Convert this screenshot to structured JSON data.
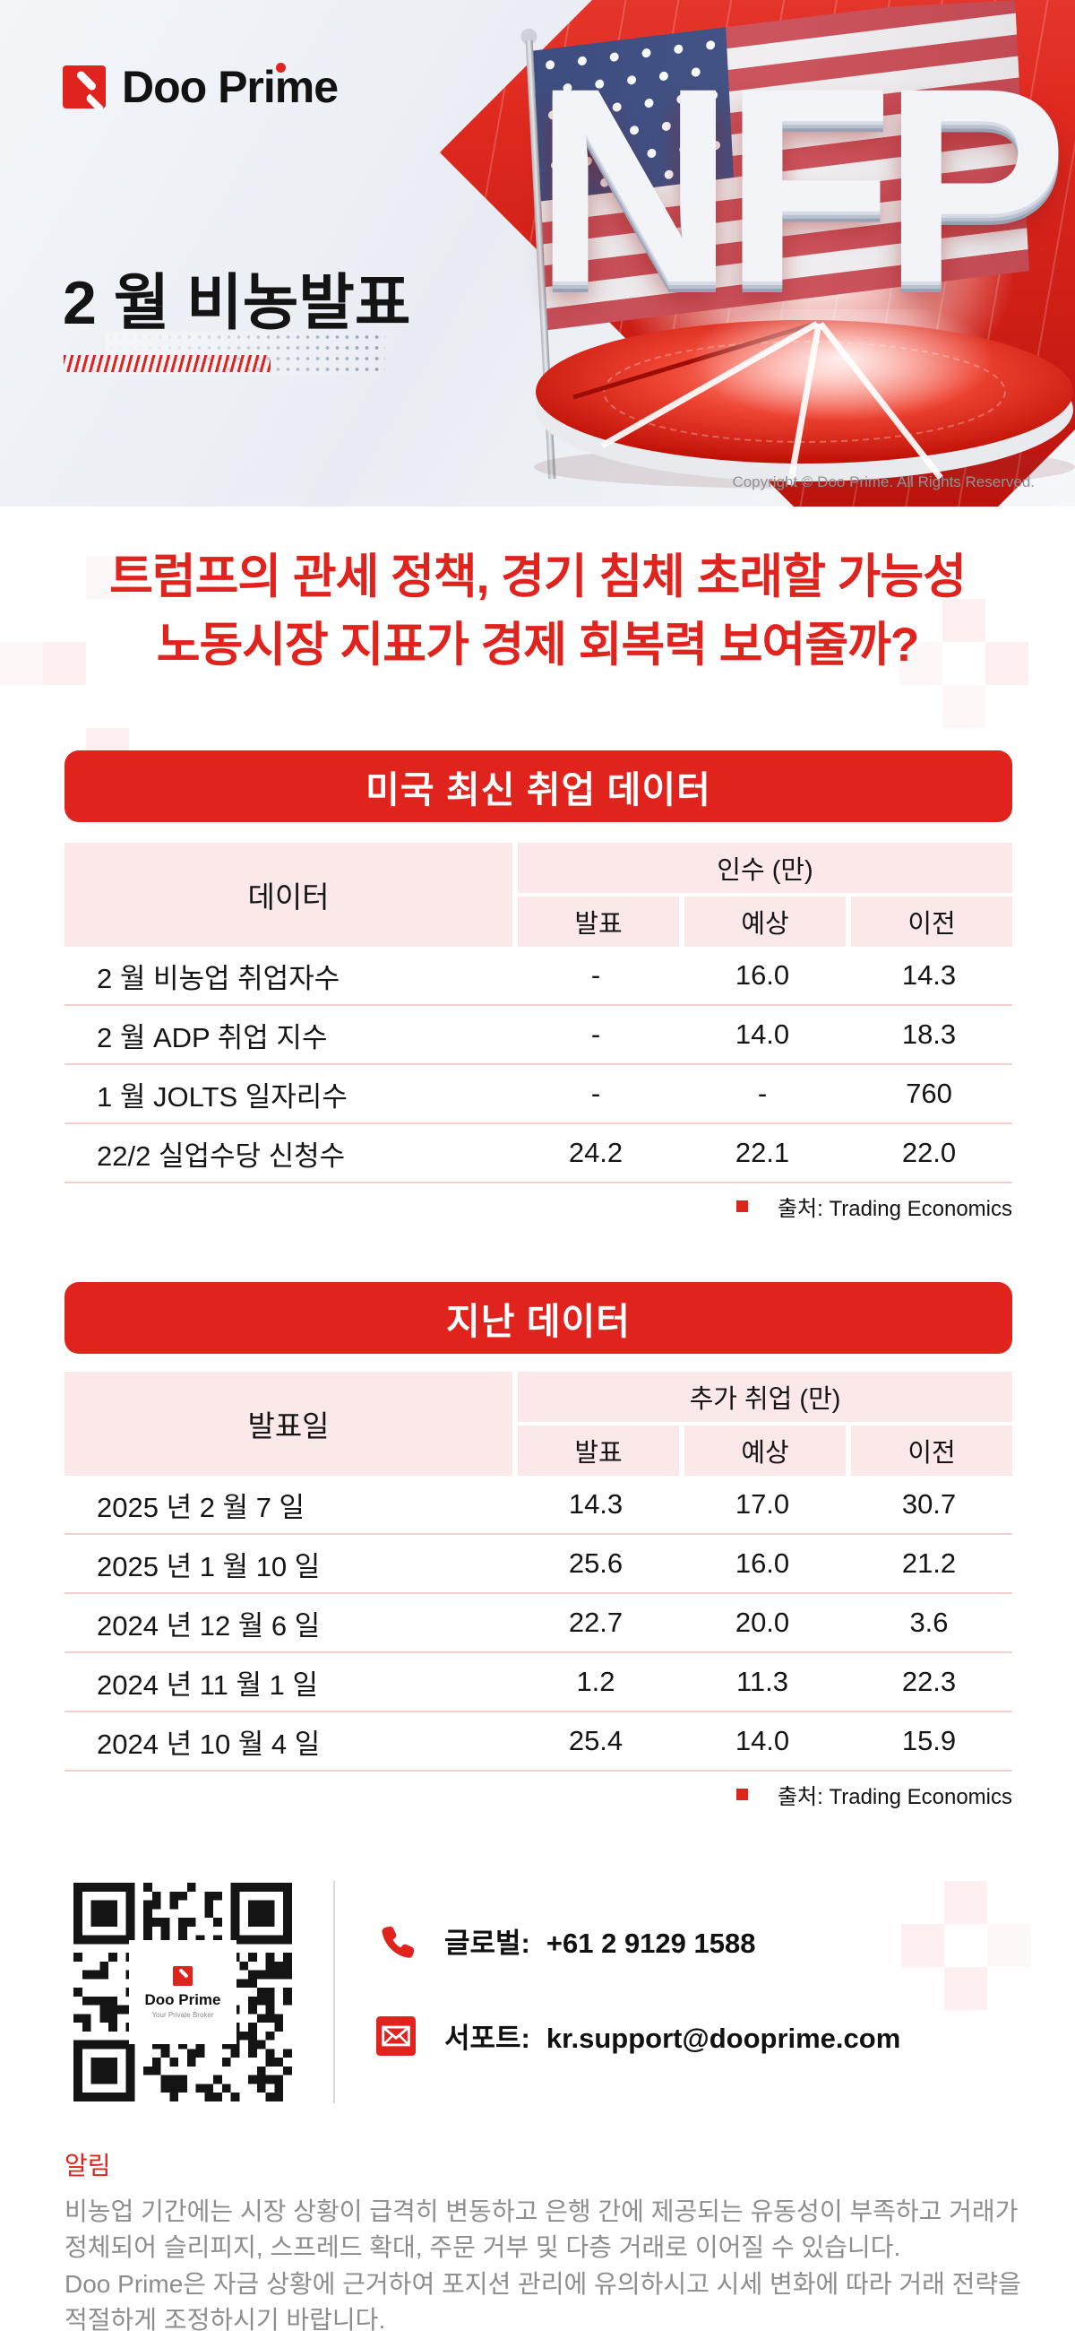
{
  "brand": {
    "name": "Doo Prime",
    "tagline": "Your Private Broker"
  },
  "header": {
    "title": "2 월 비농발표",
    "nfp_text": "NFP",
    "copyright": "Copyright © Doo Prime. All Rights Reserved."
  },
  "headline": {
    "line1": "트럼프의 관세 정책, 경기 침체 초래할 가능성",
    "line2": "노동시장 지표가 경제 회복력 보여줄까?"
  },
  "table1": {
    "banner": "미국 최신 취업 데이터",
    "col_main": "데이터",
    "group_header": "인수 (만)",
    "sub_headers": [
      "발표",
      "예상",
      "이전"
    ],
    "rows": [
      {
        "label": "2 월 비농업 취업자수",
        "values": [
          "-",
          "16.0",
          "14.3"
        ]
      },
      {
        "label": "2 월 ADP 취업 지수",
        "values": [
          "-",
          "14.0",
          "18.3"
        ]
      },
      {
        "label": "1 월 JOLTS 일자리수",
        "values": [
          "-",
          "-",
          "760"
        ]
      },
      {
        "label": "22/2 실업수당 신청수",
        "values": [
          "24.2",
          "22.1",
          "22.0"
        ]
      }
    ],
    "source": "출처: Trading Economics"
  },
  "table2": {
    "banner": "지난 데이터",
    "col_main": "발표일",
    "group_header": "추가 취업 (만)",
    "sub_headers": [
      "발표",
      "예상",
      "이전"
    ],
    "rows": [
      {
        "label": "2025 년 2 월 7 일",
        "values": [
          "14.3",
          "17.0",
          "30.7"
        ]
      },
      {
        "label": "2025 년 1 월 10 일",
        "values": [
          "25.6",
          "16.0",
          "21.2"
        ]
      },
      {
        "label": "2024 년 12 월 6 일",
        "values": [
          "22.7",
          "20.0",
          "3.6"
        ]
      },
      {
        "label": "2024 년 11 월 1 일",
        "values": [
          "1.2",
          "11.3",
          "22.3"
        ]
      },
      {
        "label": "2024 년 10 월 4 일",
        "values": [
          "25.4",
          "14.0",
          "15.9"
        ]
      }
    ],
    "source": "출처: Trading Economics"
  },
  "contact": {
    "global_label": "글로벌:",
    "global_value": "+61 2 9129 1588",
    "support_label": "서포트:",
    "support_value": "kr.support@dooprime.com"
  },
  "footer": {
    "notice_title": "알림",
    "para1": "비농업 기간에는 시장 상황이 급격히 변동하고 은행 간에 제공되는 유동성이 부족하고 거래가 정체되어 슬리피지, 스프레드 확대, 주문 거부 및 다층 거래로 이어질 수 있습니다.",
    "para2": "Doo Prime은 자금 상황에 근거하여 포지션 관리에 유의하시고 시세 변화에 따라 거래 전략을 적절하게 조정하시기 바랍니다."
  },
  "colors": {
    "primary_red": "#e1231e",
    "table_pink": "#fbe9e9",
    "row_divider_pink": "#f3cfcf",
    "footer_gray": "#8d8d8d",
    "dots_blue_gray": "#92a1b5"
  }
}
